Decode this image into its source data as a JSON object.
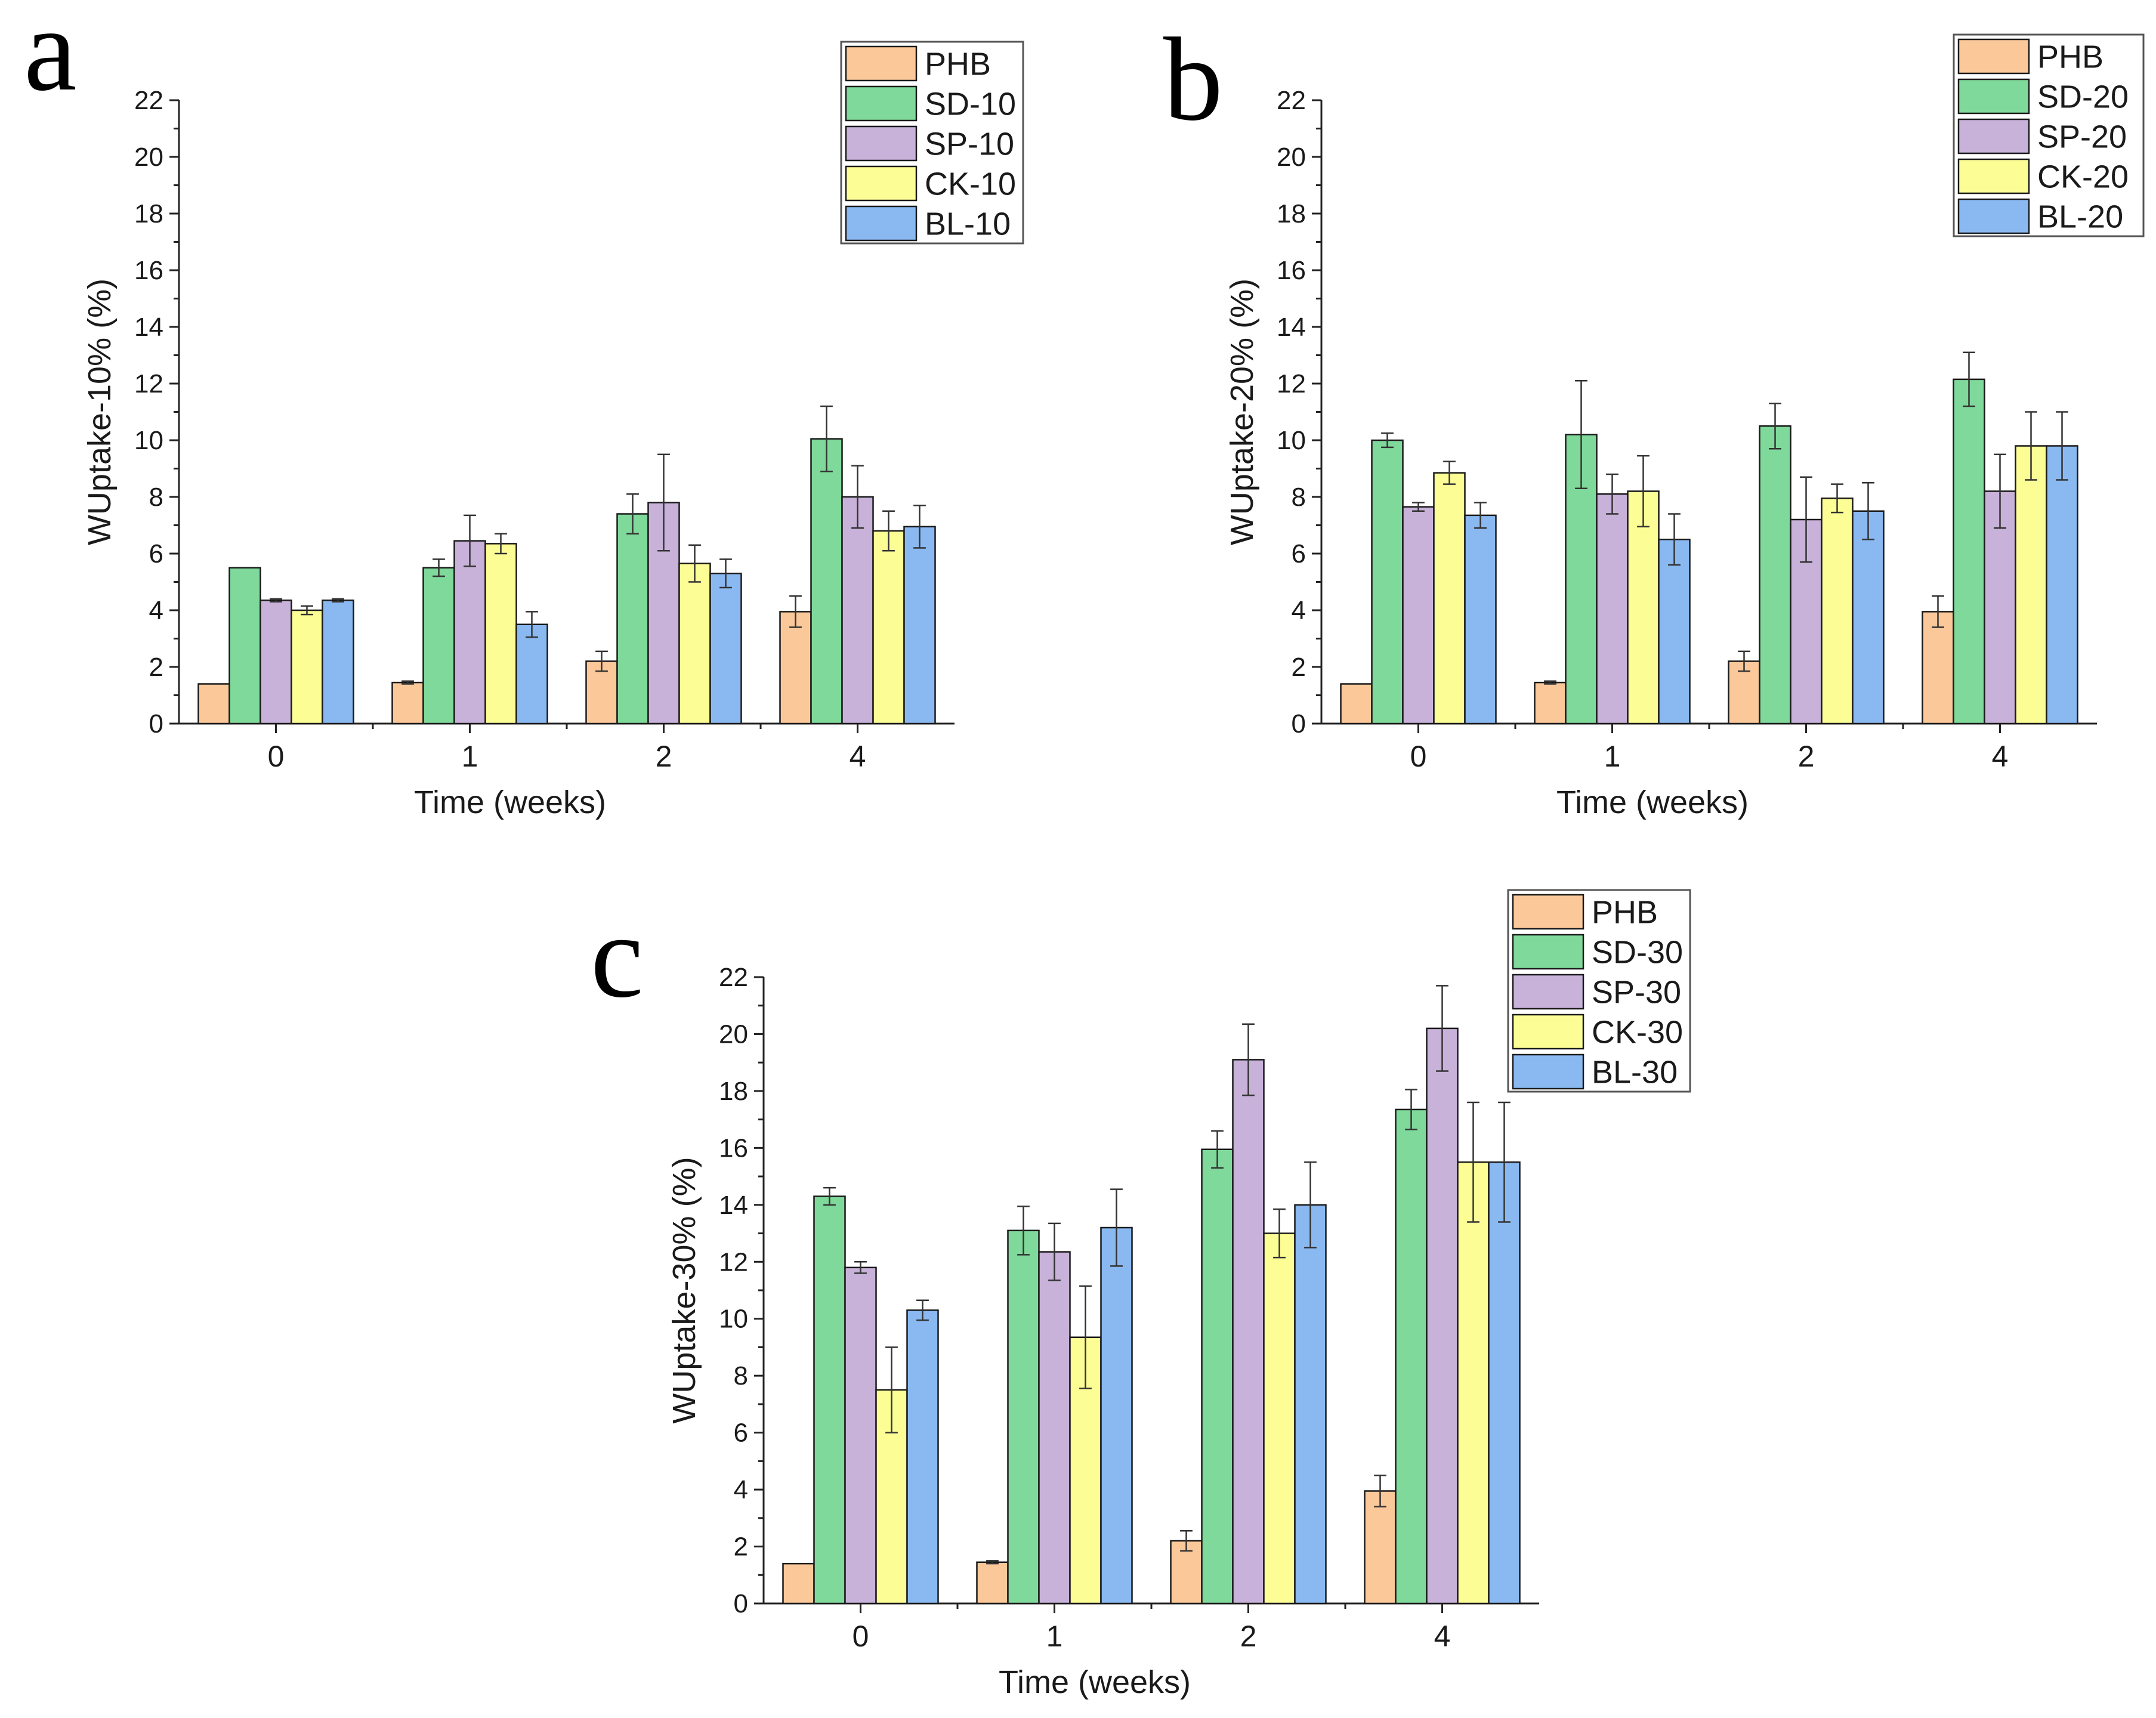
{
  "chart_data": [
    {
      "type": "bar",
      "panel_label": "a",
      "xlabel": "Time (weeks)",
      "ylabel": "WUptake-10% (%)",
      "ylim": [
        0,
        22
      ],
      "yticks": [
        "0",
        "2",
        "4",
        "6",
        "8",
        "10",
        "12",
        "14",
        "16",
        "18",
        "20",
        "22"
      ],
      "categories": [
        "0",
        "1",
        "2",
        "4"
      ],
      "legend_position": "top-right",
      "series": [
        {
          "name": "PHB",
          "color": "#fbc89a",
          "values": [
            1.4,
            1.45,
            2.2,
            3.95
          ],
          "errors": [
            0.0,
            0.05,
            0.35,
            0.55
          ]
        },
        {
          "name": "SD-10",
          "color": "#7fd99a",
          "values": [
            5.5,
            5.5,
            7.4,
            10.05
          ],
          "errors": [
            0.0,
            0.3,
            0.7,
            1.15
          ]
        },
        {
          "name": "SP-10",
          "color": "#c8b2d9",
          "values": [
            4.35,
            6.45,
            7.8,
            8.0
          ],
          "errors": [
            0.05,
            0.9,
            1.7,
            1.1
          ]
        },
        {
          "name": "CK-10",
          "color": "#fdfd96",
          "values": [
            4.0,
            6.35,
            5.65,
            6.8
          ],
          "errors": [
            0.15,
            0.35,
            0.65,
            0.7
          ]
        },
        {
          "name": "BL-10",
          "color": "#8ab9f1",
          "values": [
            4.35,
            3.5,
            5.3,
            6.95
          ],
          "errors": [
            0.05,
            0.45,
            0.5,
            0.75
          ]
        }
      ]
    },
    {
      "type": "bar",
      "panel_label": "b",
      "xlabel": "Time (weeks)",
      "ylabel": "WUptake-20% (%)",
      "ylim": [
        0,
        22
      ],
      "yticks": [
        "0",
        "2",
        "4",
        "6",
        "8",
        "10",
        "12",
        "14",
        "16",
        "18",
        "20",
        "22"
      ],
      "categories": [
        "0",
        "1",
        "2",
        "4"
      ],
      "legend_position": "top-right",
      "series": [
        {
          "name": "PHB",
          "color": "#fbc89a",
          "values": [
            1.4,
            1.45,
            2.2,
            3.95
          ],
          "errors": [
            0.0,
            0.05,
            0.35,
            0.55
          ]
        },
        {
          "name": "SD-20",
          "color": "#7fd99a",
          "values": [
            10.0,
            10.2,
            10.5,
            12.15
          ],
          "errors": [
            0.25,
            1.9,
            0.8,
            0.95
          ]
        },
        {
          "name": "SP-20",
          "color": "#c8b2d9",
          "values": [
            7.65,
            8.1,
            7.2,
            8.2
          ],
          "errors": [
            0.15,
            0.7,
            1.5,
            1.3
          ]
        },
        {
          "name": "CK-20",
          "color": "#fdfd96",
          "values": [
            8.85,
            8.2,
            7.95,
            9.8
          ],
          "errors": [
            0.4,
            1.25,
            0.5,
            1.2
          ]
        },
        {
          "name": "BL-20",
          "color": "#8ab9f1",
          "values": [
            7.35,
            6.5,
            7.5,
            9.8
          ],
          "errors": [
            0.45,
            0.9,
            1.0,
            1.2
          ]
        }
      ]
    },
    {
      "type": "bar",
      "panel_label": "c",
      "xlabel": "Time (weeks)",
      "ylabel": "WUptake-30% (%)",
      "ylim": [
        0,
        22
      ],
      "yticks": [
        "0",
        "2",
        "4",
        "6",
        "8",
        "10",
        "12",
        "14",
        "16",
        "18",
        "20",
        "22"
      ],
      "categories": [
        "0",
        "1",
        "2",
        "4"
      ],
      "legend_position": "top-right",
      "series": [
        {
          "name": "PHB",
          "color": "#fbc89a",
          "values": [
            1.4,
            1.45,
            2.2,
            3.95
          ],
          "errors": [
            0.0,
            0.05,
            0.35,
            0.55
          ]
        },
        {
          "name": "SD-30",
          "color": "#7fd99a",
          "values": [
            14.3,
            13.1,
            15.95,
            17.35
          ],
          "errors": [
            0.3,
            0.85,
            0.65,
            0.7
          ]
        },
        {
          "name": "SP-30",
          "color": "#c8b2d9",
          "values": [
            11.8,
            12.35,
            19.1,
            20.2
          ],
          "errors": [
            0.2,
            1.0,
            1.25,
            1.5
          ]
        },
        {
          "name": "CK-30",
          "color": "#fdfd96",
          "values": [
            7.5,
            9.35,
            13.0,
            15.5
          ],
          "errors": [
            1.5,
            1.8,
            0.85,
            2.1
          ]
        },
        {
          "name": "BL-30",
          "color": "#8ab9f1",
          "values": [
            10.3,
            13.2,
            14.0,
            15.5
          ],
          "errors": [
            0.35,
            1.35,
            1.5,
            2.1
          ]
        }
      ]
    }
  ]
}
